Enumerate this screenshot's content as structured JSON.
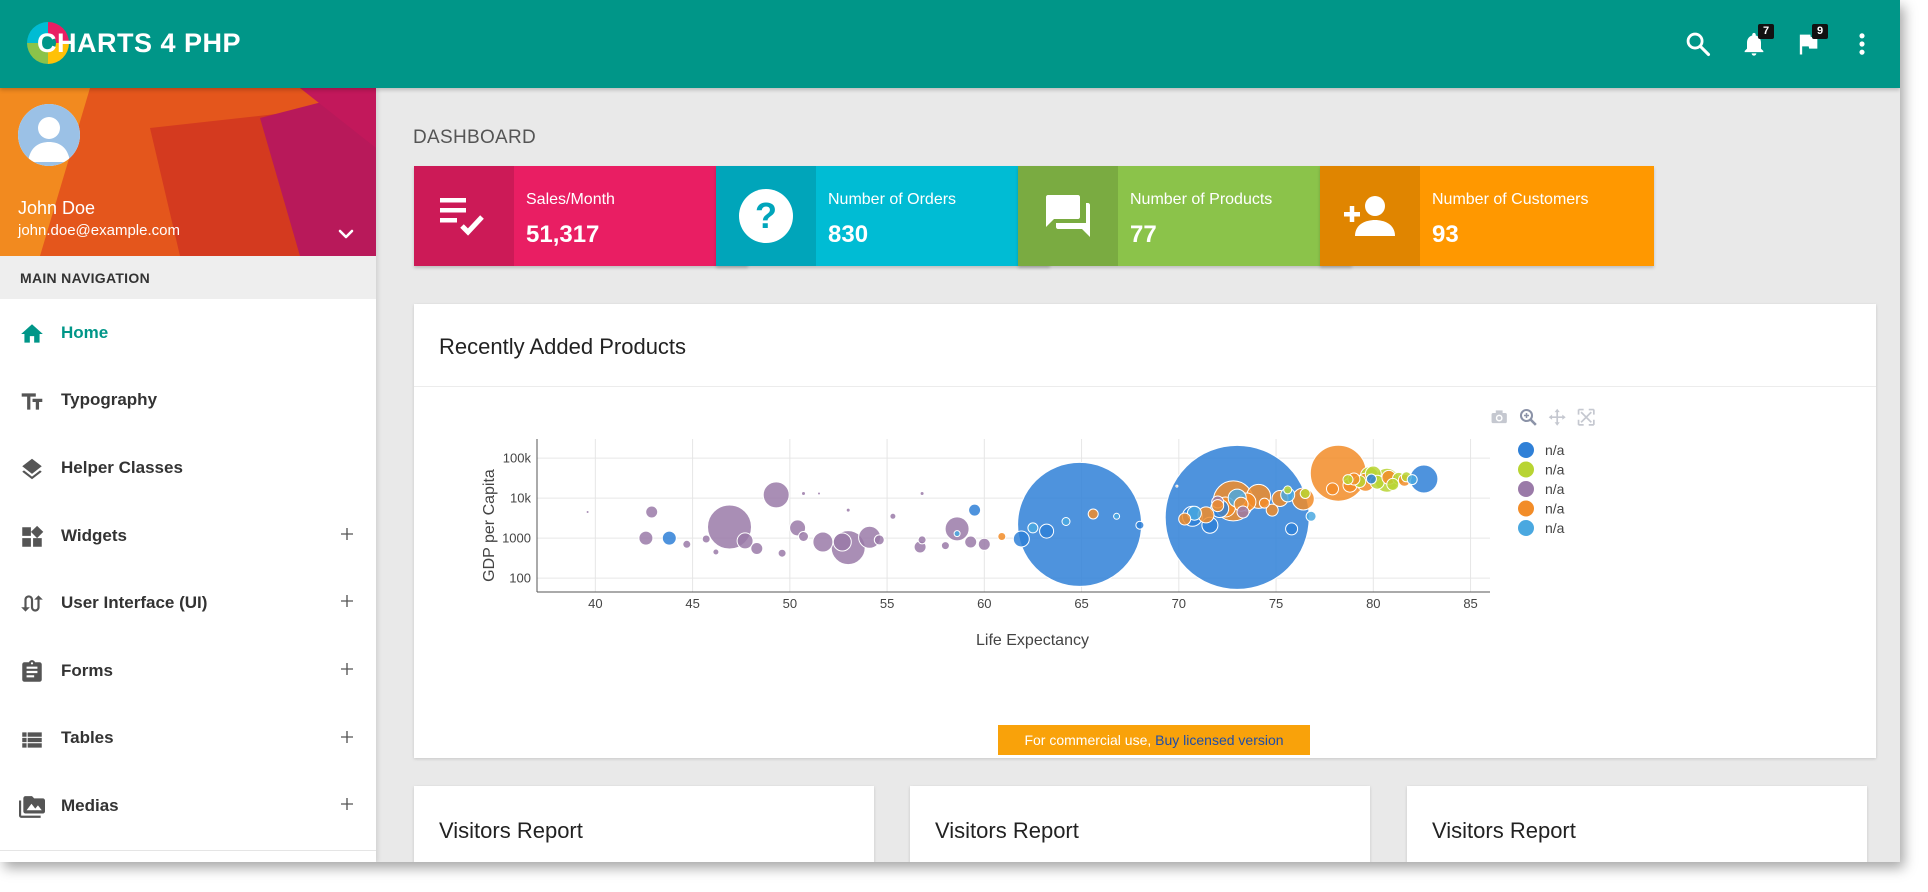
{
  "app": {
    "logo_text": "CHARTS 4 PHP"
  },
  "topbar": {
    "notifications_count": "7",
    "flags_count": "9"
  },
  "user": {
    "name": "John Doe",
    "email": "john.doe@example.com"
  },
  "nav": {
    "header": "MAIN NAVIGATION",
    "items": [
      {
        "label": "Home",
        "icon": "home-icon",
        "expandable": false,
        "active": true
      },
      {
        "label": "Typography",
        "icon": "text-fields-icon",
        "expandable": false,
        "active": false
      },
      {
        "label": "Helper Classes",
        "icon": "layers-icon",
        "expandable": false,
        "active": false
      },
      {
        "label": "Widgets",
        "icon": "widgets-icon",
        "expandable": true,
        "active": false
      },
      {
        "label": "User Interface (UI)",
        "icon": "swap-calls-icon",
        "expandable": true,
        "active": false
      },
      {
        "label": "Forms",
        "icon": "assignment-icon",
        "expandable": true,
        "active": false
      },
      {
        "label": "Tables",
        "icon": "view-list-icon",
        "expandable": true,
        "active": false
      },
      {
        "label": "Medias",
        "icon": "perm-media-icon",
        "expandable": true,
        "active": false
      }
    ]
  },
  "page": {
    "title": "DASHBOARD"
  },
  "info_boxes": [
    {
      "label": "Sales/Month",
      "value": "51,317",
      "color": "#e91e63",
      "icon": "playlist-check-icon"
    },
    {
      "label": "Number of Orders",
      "value": "830",
      "color": "#00bcd4",
      "icon": "help-icon"
    },
    {
      "label": "Number of Products",
      "value": "77",
      "color": "#8bc34a",
      "icon": "forum-icon"
    },
    {
      "label": "Number of Customers",
      "value": "93",
      "color": "#ff9800",
      "icon": "person-add-icon"
    }
  ],
  "chart_card": {
    "title": "Recently Added Products",
    "watermark_text": "For commercial use, ",
    "watermark_link": "Buy licensed version"
  },
  "visitor_cards": [
    {
      "title": "Visitors Report"
    },
    {
      "title": "Visitors Report"
    },
    {
      "title": "Visitors Report"
    }
  ],
  "chart_data": {
    "type": "scatter",
    "subtype": "bubble",
    "xlabel": "Life Expectancy",
    "ylabel": "GDP per Capita",
    "xlim": [
      37,
      86
    ],
    "ylim": [
      45,
      300000
    ],
    "y_scale": "log",
    "x_ticks": [
      "40",
      "45",
      "50",
      "55",
      "60",
      "65",
      "70",
      "75",
      "80",
      "85"
    ],
    "y_ticks": [
      {
        "value": 100,
        "label": "100"
      },
      {
        "value": 1000,
        "label": "1000"
      },
      {
        "value": 10000,
        "label": "10k"
      },
      {
        "value": 100000,
        "label": "100k"
      }
    ],
    "grid": true,
    "legend_position": "right",
    "series": [
      {
        "name": "n/a",
        "color": "#2f80d7",
        "points": [
          [
            64.9,
            2200,
            62
          ],
          [
            73.0,
            3300,
            72
          ],
          [
            82.6,
            30000,
            14
          ],
          [
            61.9,
            950,
            8
          ],
          [
            59.5,
            5000,
            6
          ],
          [
            43.8,
            1000,
            7
          ],
          [
            70.7,
            3500,
            10
          ],
          [
            71.6,
            2100,
            8
          ],
          [
            72.1,
            5500,
            9
          ],
          [
            75.8,
            1700,
            6
          ],
          [
            79.9,
            30000,
            5
          ],
          [
            63.2,
            1500,
            7
          ],
          [
            68.0,
            2100,
            4
          ]
        ]
      },
      {
        "name": "n/a",
        "color": "#b8d432",
        "points": [
          [
            80.7,
            28000,
            12
          ],
          [
            79.8,
            36000,
            9
          ],
          [
            80.2,
            25000,
            7
          ],
          [
            81.3,
            31000,
            6
          ],
          [
            76.5,
            13000,
            5
          ],
          [
            81.7,
            34000,
            5
          ],
          [
            79.3,
            26000,
            6
          ],
          [
            81.0,
            22000,
            6
          ],
          [
            80.0,
            40000,
            8
          ],
          [
            75.6,
            16000,
            4
          ],
          [
            78.7,
            29000,
            5
          ]
        ]
      },
      {
        "name": "n/a",
        "color": "#9a7aa8",
        "points": [
          [
            46.9,
            1900,
            22
          ],
          [
            53.0,
            580,
            17
          ],
          [
            49.3,
            12000,
            13
          ],
          [
            58.6,
            1700,
            12
          ],
          [
            54.1,
            1050,
            11
          ],
          [
            51.7,
            800,
            10
          ],
          [
            52.7,
            800,
            9
          ],
          [
            47.7,
            850,
            8
          ],
          [
            50.4,
            1800,
            8
          ],
          [
            42.6,
            1000,
            7
          ],
          [
            42.9,
            4500,
            6
          ],
          [
            59.3,
            800,
            6
          ],
          [
            56.7,
            600,
            6
          ],
          [
            44.7,
            700,
            4
          ],
          [
            56.8,
            900,
            4
          ],
          [
            46.2,
            450,
            3
          ],
          [
            49.6,
            420,
            4
          ],
          [
            55.3,
            3500,
            3
          ],
          [
            50.7,
            1100,
            5
          ],
          [
            58.0,
            650,
            4
          ],
          [
            60.0,
            700,
            6
          ],
          [
            45.7,
            950,
            4
          ],
          [
            54.6,
            900,
            5
          ],
          [
            48.3,
            550,
            6
          ],
          [
            72.0,
            8000,
            6
          ],
          [
            73.3,
            4500,
            6
          ],
          [
            39.6,
            4500,
            1.5
          ],
          [
            50.7,
            13000,
            2
          ],
          [
            51.5,
            13000,
            1.5
          ],
          [
            53.0,
            5000,
            2
          ],
          [
            56.8,
            13000,
            2
          ]
        ]
      },
      {
        "name": "n/a",
        "color": "#f28c28",
        "points": [
          [
            78.2,
            42000,
            28
          ],
          [
            72.8,
            8500,
            20
          ],
          [
            74.1,
            11000,
            12
          ],
          [
            76.4,
            9500,
            11
          ],
          [
            72.4,
            6000,
            10
          ],
          [
            71.4,
            3800,
            8
          ],
          [
            73.5,
            8000,
            9
          ],
          [
            75.2,
            9800,
            8
          ],
          [
            70.3,
            3000,
            6
          ],
          [
            74.8,
            5000,
            6
          ],
          [
            79.6,
            25000,
            9
          ],
          [
            78.8,
            21000,
            7
          ],
          [
            79.0,
            30000,
            6
          ],
          [
            80.8,
            33000,
            7
          ],
          [
            73.2,
            7000,
            7
          ],
          [
            72.0,
            6500,
            6
          ],
          [
            60.9,
            1100,
            4
          ],
          [
            77.9,
            17000,
            6
          ],
          [
            65.6,
            4000,
            5
          ],
          [
            74.4,
            7500,
            5
          ],
          [
            81.6,
            28000,
            6
          ],
          [
            69.9,
            20000,
            1
          ]
        ]
      },
      {
        "name": "n/a",
        "color": "#4aa8e0",
        "points": [
          [
            64.2,
            2600,
            4
          ],
          [
            70.8,
            4200,
            7
          ],
          [
            73.0,
            10000,
            9
          ],
          [
            75.6,
            12000,
            7
          ],
          [
            76.8,
            3500,
            5
          ],
          [
            62.5,
            1800,
            5
          ],
          [
            58.6,
            1300,
            3
          ],
          [
            82.0,
            29000,
            5
          ],
          [
            66.8,
            3500,
            3
          ]
        ]
      }
    ]
  },
  "colors": {
    "primary": "#009688",
    "background": "#e9e9e9"
  }
}
